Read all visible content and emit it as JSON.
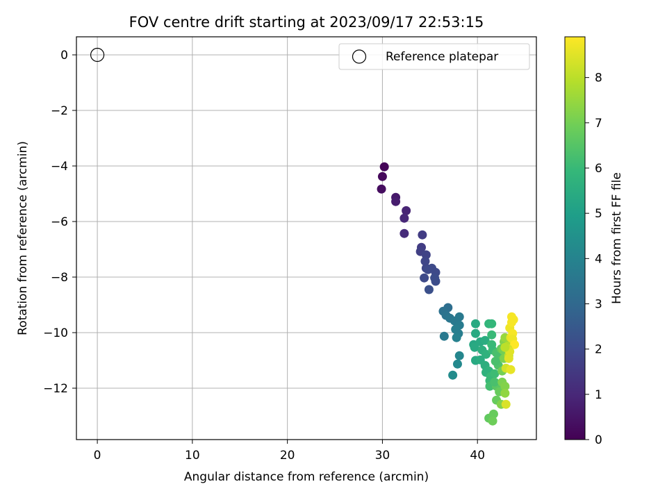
{
  "chart_data": {
    "type": "scatter",
    "title": "FOV centre drift starting at 2023/09/17 22:53:15",
    "xlabel": "Angular distance from reference (arcmin)",
    "ylabel": "Rotation from reference (arcmin)",
    "xlim": [
      -2.2,
      46.2
    ],
    "ylim": [
      -13.85,
      0.65
    ],
    "xticks": [
      0,
      10,
      20,
      30,
      40
    ],
    "yticks": [
      0,
      -2,
      -4,
      -6,
      -8,
      -10,
      -12
    ],
    "grid": true,
    "legend": {
      "position": "top-right",
      "entries": [
        "Reference platepar"
      ]
    },
    "reference_point": {
      "x": 0,
      "y": 0,
      "label": "Reference platepar"
    },
    "colorbar": {
      "label": "Hours from first FF file",
      "min": 0,
      "max": 8.9,
      "ticks": [
        0,
        1,
        2,
        3,
        4,
        5,
        6,
        7,
        8
      ],
      "colormap": "viridis"
    },
    "series": [
      {
        "points": [
          {
            "x": 30.2,
            "y": -4.03,
            "c": 0.1
          },
          {
            "x": 30.0,
            "y": -4.38,
            "c": 0.2
          },
          {
            "x": 29.9,
            "y": -4.83,
            "c": 0.3
          },
          {
            "x": 31.4,
            "y": -5.13,
            "c": 0.6
          },
          {
            "x": 31.4,
            "y": -5.28,
            "c": 0.7
          },
          {
            "x": 32.5,
            "y": -5.61,
            "c": 0.9
          },
          {
            "x": 32.3,
            "y": -5.88,
            "c": 1.0
          },
          {
            "x": 32.3,
            "y": -6.43,
            "c": 1.1
          },
          {
            "x": 34.2,
            "y": -6.48,
            "c": 1.6
          },
          {
            "x": 34.1,
            "y": -6.93,
            "c": 1.6
          },
          {
            "x": 34.0,
            "y": -7.08,
            "c": 1.7
          },
          {
            "x": 34.6,
            "y": -7.2,
            "c": 1.8
          },
          {
            "x": 34.5,
            "y": -7.43,
            "c": 1.9
          },
          {
            "x": 34.6,
            "y": -7.68,
            "c": 1.9
          },
          {
            "x": 35.2,
            "y": -7.68,
            "c": 2.0
          },
          {
            "x": 34.8,
            "y": -7.73,
            "c": 2.0
          },
          {
            "x": 35.6,
            "y": -7.83,
            "c": 2.0
          },
          {
            "x": 35.5,
            "y": -8.03,
            "c": 2.1
          },
          {
            "x": 34.4,
            "y": -8.03,
            "c": 2.0
          },
          {
            "x": 35.6,
            "y": -8.15,
            "c": 2.1
          },
          {
            "x": 34.9,
            "y": -8.45,
            "c": 2.2
          },
          {
            "x": 36.9,
            "y": -9.1,
            "c": 3.2
          },
          {
            "x": 36.4,
            "y": -9.23,
            "c": 3.3
          },
          {
            "x": 36.7,
            "y": -9.38,
            "c": 3.4
          },
          {
            "x": 37.1,
            "y": -9.48,
            "c": 3.5
          },
          {
            "x": 37.6,
            "y": -9.58,
            "c": 3.6
          },
          {
            "x": 38.1,
            "y": -9.43,
            "c": 3.6
          },
          {
            "x": 38.1,
            "y": -9.73,
            "c": 3.7
          },
          {
            "x": 37.7,
            "y": -9.88,
            "c": 3.8
          },
          {
            "x": 38.0,
            "y": -10.03,
            "c": 3.8
          },
          {
            "x": 37.8,
            "y": -10.18,
            "c": 3.9
          },
          {
            "x": 36.5,
            "y": -10.13,
            "c": 3.6
          },
          {
            "x": 38.1,
            "y": -10.83,
            "c": 4.1
          },
          {
            "x": 37.9,
            "y": -11.13,
            "c": 4.2
          },
          {
            "x": 37.4,
            "y": -11.53,
            "c": 4.3
          },
          {
            "x": 39.8,
            "y": -9.68,
            "c": 5.4
          },
          {
            "x": 39.8,
            "y": -10.03,
            "c": 5.4
          },
          {
            "x": 39.6,
            "y": -10.43,
            "c": 5.3
          },
          {
            "x": 39.7,
            "y": -10.53,
            "c": 5.4
          },
          {
            "x": 40.3,
            "y": -10.33,
            "c": 5.4
          },
          {
            "x": 40.8,
            "y": -10.28,
            "c": 5.5
          },
          {
            "x": 41.2,
            "y": -9.68,
            "c": 5.8
          },
          {
            "x": 41.5,
            "y": -9.68,
            "c": 5.9
          },
          {
            "x": 41.5,
            "y": -10.08,
            "c": 6.0
          },
          {
            "x": 40.5,
            "y": -10.63,
            "c": 5.6
          },
          {
            "x": 40.9,
            "y": -10.78,
            "c": 5.7
          },
          {
            "x": 41.5,
            "y": -10.43,
            "c": 6.0
          },
          {
            "x": 41.6,
            "y": -10.63,
            "c": 6.0
          },
          {
            "x": 39.8,
            "y": -11.0,
            "c": 5.4
          },
          {
            "x": 40.3,
            "y": -10.98,
            "c": 5.5
          },
          {
            "x": 40.8,
            "y": -11.18,
            "c": 5.6
          },
          {
            "x": 41.2,
            "y": -11.38,
            "c": 5.8
          },
          {
            "x": 40.9,
            "y": -11.43,
            "c": 5.7
          },
          {
            "x": 41.4,
            "y": -11.58,
            "c": 6.0
          },
          {
            "x": 41.8,
            "y": -11.48,
            "c": 6.1
          },
          {
            "x": 41.3,
            "y": -11.73,
            "c": 6.0
          },
          {
            "x": 41.7,
            "y": -11.88,
            "c": 6.2
          },
          {
            "x": 41.3,
            "y": -11.93,
            "c": 6.2
          },
          {
            "x": 42.2,
            "y": -11.18,
            "c": 6.4
          },
          {
            "x": 42.4,
            "y": -10.88,
            "c": 6.5
          },
          {
            "x": 42.0,
            "y": -10.73,
            "c": 6.3
          },
          {
            "x": 41.9,
            "y": -11.03,
            "c": 6.3
          },
          {
            "x": 42.0,
            "y": -11.93,
            "c": 6.6
          },
          {
            "x": 42.3,
            "y": -12.13,
            "c": 6.8
          },
          {
            "x": 42.0,
            "y": -12.43,
            "c": 6.8
          },
          {
            "x": 41.8,
            "y": -11.78,
            "c": 6.3
          },
          {
            "x": 42.5,
            "y": -10.58,
            "c": 6.7
          },
          {
            "x": 42.8,
            "y": -10.33,
            "c": 7.2
          },
          {
            "x": 42.9,
            "y": -10.18,
            "c": 7.5
          },
          {
            "x": 42.7,
            "y": -10.63,
            "c": 7.0
          },
          {
            "x": 42.8,
            "y": -10.93,
            "c": 7.1
          },
          {
            "x": 42.6,
            "y": -11.38,
            "c": 7.0
          },
          {
            "x": 42.6,
            "y": -11.78,
            "c": 7.1
          },
          {
            "x": 42.9,
            "y": -11.93,
            "c": 7.2
          },
          {
            "x": 42.9,
            "y": -12.18,
            "c": 7.4
          },
          {
            "x": 42.5,
            "y": -12.58,
            "c": 7.2
          },
          {
            "x": 41.2,
            "y": -13.08,
            "c": 6.7
          },
          {
            "x": 41.7,
            "y": -12.93,
            "c": 6.8
          },
          {
            "x": 41.6,
            "y": -13.18,
            "c": 6.9
          },
          {
            "x": 43.0,
            "y": -12.58,
            "c": 8.4
          },
          {
            "x": 43.2,
            "y": -10.48,
            "c": 7.9
          },
          {
            "x": 43.3,
            "y": -10.83,
            "c": 8.1
          },
          {
            "x": 43.0,
            "y": -11.28,
            "c": 8.3
          },
          {
            "x": 43.5,
            "y": -11.33,
            "c": 8.6
          },
          {
            "x": 43.3,
            "y": -10.93,
            "c": 8.5
          },
          {
            "x": 43.5,
            "y": -10.18,
            "c": 8.6
          },
          {
            "x": 43.4,
            "y": -9.83,
            "c": 8.7
          },
          {
            "x": 43.6,
            "y": -9.43,
            "c": 8.8
          },
          {
            "x": 43.8,
            "y": -9.53,
            "c": 8.8
          },
          {
            "x": 43.7,
            "y": -10.03,
            "c": 8.8
          },
          {
            "x": 43.7,
            "y": -10.23,
            "c": 8.7
          },
          {
            "x": 43.9,
            "y": -10.43,
            "c": 8.9
          },
          {
            "x": 43.6,
            "y": -9.63,
            "c": 8.8
          },
          {
            "x": 43.2,
            "y": -10.58,
            "c": 8.3
          },
          {
            "x": 43.4,
            "y": -10.68,
            "c": 8.5
          },
          {
            "x": 42.9,
            "y": -10.53,
            "c": 8.0
          }
        ]
      }
    ]
  }
}
